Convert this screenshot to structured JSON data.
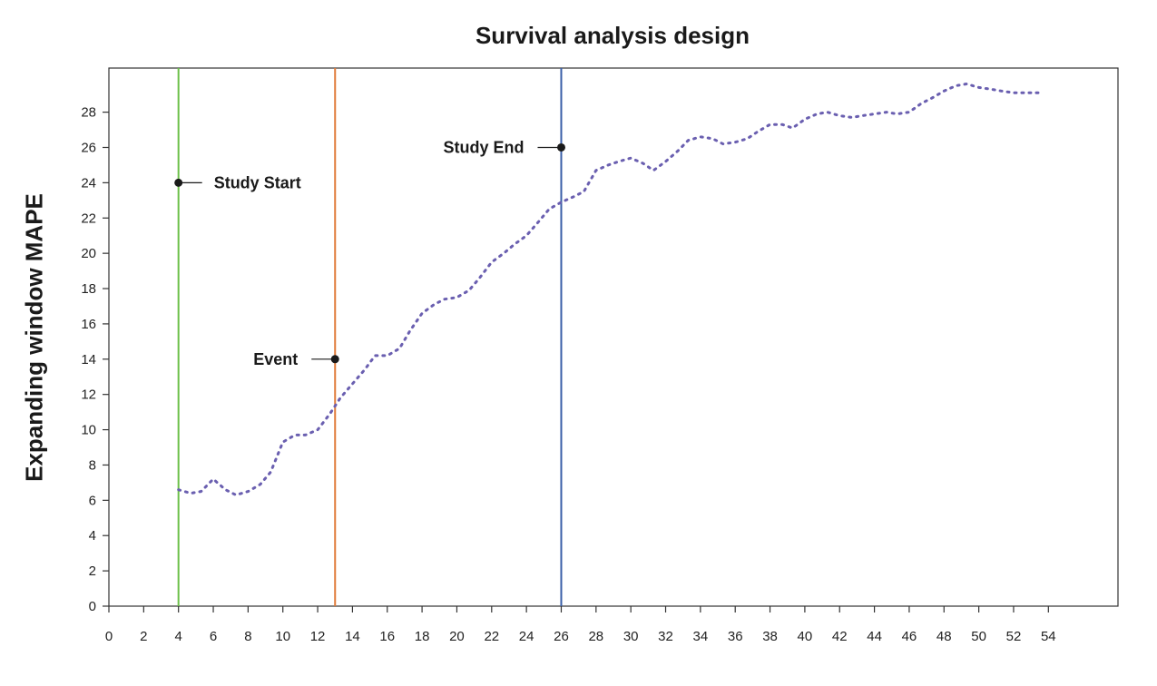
{
  "chart_data": {
    "type": "line",
    "title": "Survival analysis design",
    "ylabel": "Expanding window MAPE",
    "xlabel": "",
    "xlim": [
      0,
      58
    ],
    "ylim": [
      0,
      30.5
    ],
    "x_ticks": [
      0,
      2,
      4,
      6,
      8,
      10,
      12,
      14,
      16,
      18,
      20,
      22,
      24,
      26,
      28,
      30,
      32,
      34,
      36,
      38,
      40,
      42,
      44,
      46,
      48,
      50,
      52,
      54
    ],
    "y_ticks": [
      0,
      2,
      4,
      6,
      8,
      10,
      12,
      14,
      16,
      18,
      20,
      22,
      24,
      26,
      28
    ],
    "grid": false,
    "series": [
      {
        "color": "#6a5fb0",
        "style": "dotted",
        "x": [
          4,
          4.7,
          5.3,
          6,
          6.7,
          7.3,
          8,
          8.7,
          9.3,
          10,
          10.7,
          11.3,
          12,
          12.7,
          13.3,
          14,
          14.7,
          15.3,
          16,
          16.7,
          17.3,
          18,
          18.7,
          19.3,
          20,
          20.7,
          21.3,
          22,
          22.7,
          23.3,
          24,
          24.7,
          25.3,
          26,
          26.7,
          27.3,
          28,
          28.7,
          29.3,
          30,
          30.7,
          31.3,
          32,
          32.7,
          33.3,
          34,
          34.7,
          35.3,
          36,
          36.7,
          37.3,
          38,
          38.7,
          39.3,
          40,
          40.7,
          41.3,
          42,
          42.7,
          43.3,
          44,
          44.7,
          45.3,
          46,
          46.7,
          47.3,
          48,
          48.7,
          49.3,
          50,
          50.7,
          51.3,
          52,
          52.7,
          53.5
        ],
        "y": [
          6.6,
          6.4,
          6.5,
          7.2,
          6.6,
          6.3,
          6.5,
          6.9,
          7.6,
          9.3,
          9.7,
          9.7,
          10.0,
          10.9,
          11.8,
          12.6,
          13.4,
          14.2,
          14.2,
          14.6,
          15.6,
          16.6,
          17.1,
          17.4,
          17.5,
          17.9,
          18.6,
          19.5,
          20.0,
          20.5,
          21.0,
          21.8,
          22.5,
          22.9,
          23.2,
          23.5,
          24.7,
          25.0,
          25.2,
          25.4,
          25.1,
          24.7,
          25.2,
          25.8,
          26.4,
          26.6,
          26.5,
          26.2,
          26.3,
          26.5,
          26.9,
          27.3,
          27.3,
          27.1,
          27.6,
          27.9,
          28.0,
          27.8,
          27.7,
          27.8,
          27.9,
          28.0,
          27.9,
          28.0,
          28.5,
          28.8,
          29.2,
          29.5,
          29.6,
          29.4,
          29.3,
          29.2,
          29.1,
          29.1,
          29.1
        ]
      }
    ],
    "vlines": [
      {
        "x": 4,
        "color": "#6cc04a"
      },
      {
        "x": 13,
        "color": "#e07b39"
      },
      {
        "x": 26,
        "color": "#3a5fa8"
      }
    ],
    "annotations": [
      {
        "text": "Study Start",
        "x": 4,
        "y": 24,
        "side": "right"
      },
      {
        "text": "Event",
        "x": 13,
        "y": 14,
        "side": "left"
      },
      {
        "text": "Study End",
        "x": 26,
        "y": 26,
        "side": "left"
      }
    ]
  }
}
